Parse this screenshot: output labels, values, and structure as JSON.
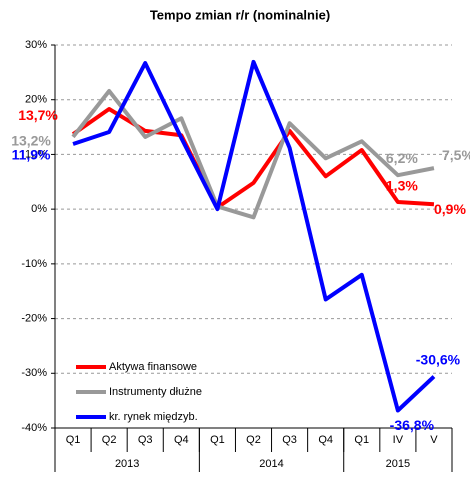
{
  "chart_data": {
    "type": "line",
    "title": "Tempo zmian r/r (nominalnie)",
    "categories": [
      "Q1",
      "Q2",
      "Q3",
      "Q4",
      "Q1",
      "Q2",
      "Q3",
      "Q4",
      "Q1",
      "IV",
      "V"
    ],
    "x_groups": [
      {
        "label": "2013",
        "count": 4
      },
      {
        "label": "2014",
        "count": 4
      },
      {
        "label": "2015",
        "count": 3
      }
    ],
    "series": [
      {
        "name": "Aktywa finansowe",
        "color": "#ff0000",
        "values": [
          13.7,
          18.3,
          14.3,
          13.5,
          0.3,
          4.8,
          14.3,
          6.0,
          10.8,
          1.3,
          0.9
        ],
        "value_labels": [
          "13,7%",
          null,
          null,
          null,
          null,
          null,
          null,
          null,
          null,
          "1,3%",
          "0,9%"
        ]
      },
      {
        "name": "Instrumenty dłużne",
        "color": "#999999",
        "values": [
          13.2,
          21.6,
          13.2,
          16.6,
          0.5,
          -1.5,
          15.7,
          9.3,
          12.4,
          6.2,
          7.5
        ],
        "value_labels": [
          "13,2%",
          null,
          null,
          null,
          null,
          null,
          null,
          null,
          null,
          "6,2%",
          "7,5%"
        ]
      },
      {
        "name": "kr. rynek międzyb.",
        "color": "#0000ff",
        "values": [
          11.9,
          14.1,
          26.7,
          13.0,
          0.0,
          26.9,
          11.2,
          -16.5,
          -12.0,
          -36.8,
          -30.6
        ],
        "value_labels": [
          "11,9%",
          null,
          null,
          null,
          null,
          null,
          null,
          null,
          null,
          "-36,8%",
          "-30,6%"
        ]
      }
    ],
    "ylim": [
      -40,
      30
    ],
    "yticks": [
      {
        "value": -40,
        "label": "-40%"
      },
      {
        "value": -30,
        "label": "-30%"
      },
      {
        "value": -20,
        "label": "-20%"
      },
      {
        "value": -10,
        "label": "-10%"
      },
      {
        "value": 0,
        "label": "0%"
      },
      {
        "value": 10,
        "label": "10%"
      },
      {
        "value": 20,
        "label": "20%"
      },
      {
        "value": 30,
        "label": "30%"
      }
    ],
    "grid": true
  }
}
